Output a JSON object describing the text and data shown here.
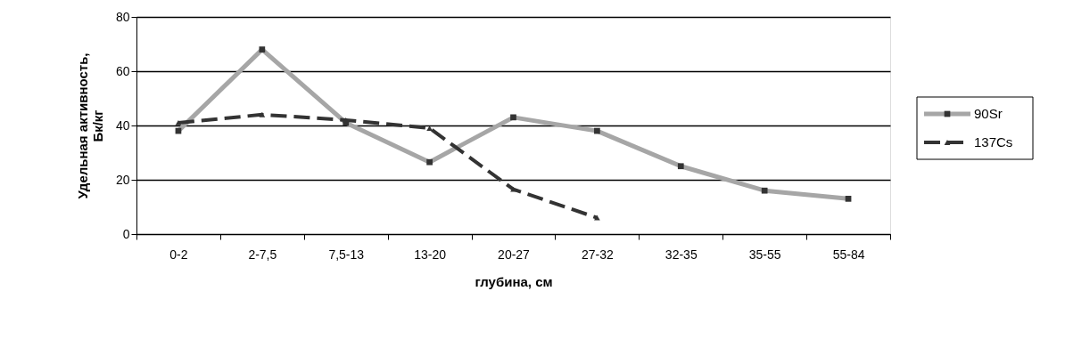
{
  "chart_data": {
    "type": "line",
    "xlabel": "глубина, см",
    "ylabel": "Удельная активность,\nБк/кг",
    "categories": [
      "0-2",
      "2-7,5",
      "7,5-13",
      "13-20",
      "20-27",
      "27-32",
      "32-35",
      "35-55",
      "55-84"
    ],
    "series": [
      {
        "name": "90Sr",
        "color": "#a6a6a6",
        "marker": "square",
        "line_style": "solid",
        "values": [
          38,
          68,
          41,
          26.5,
          43,
          38,
          25,
          16,
          13
        ]
      },
      {
        "name": "137Cs",
        "color": "#333333",
        "marker": "triangle",
        "line_style": "dashed",
        "values": [
          41,
          44,
          42,
          39,
          16.5,
          6,
          null,
          null,
          null
        ]
      }
    ],
    "ylim": [
      0,
      80
    ],
    "yticks": [
      0,
      20,
      40,
      60,
      80
    ],
    "grid": "y",
    "legend": "right"
  }
}
